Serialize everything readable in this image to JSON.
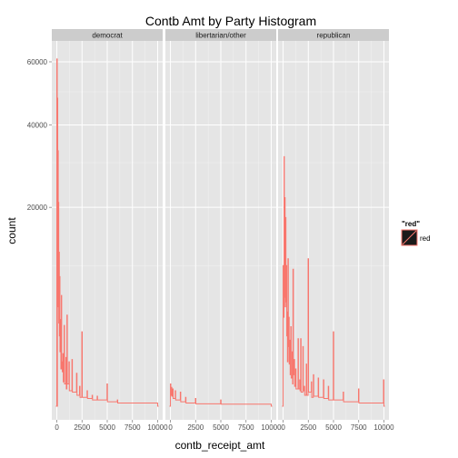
{
  "chart_data": {
    "type": "histogram",
    "title": "Contb Amt by Party Histogram",
    "xlabel": "contb_receipt_amt",
    "ylabel": "count",
    "y_scale": "sqrt",
    "xlim": [
      -500,
      10500
    ],
    "ylim": [
      0,
      65000
    ],
    "x_ticks": [
      0,
      2500,
      5000,
      7500,
      10000
    ],
    "x_tick_labels": [
      "0",
      "2500",
      "5000",
      "7500",
      "10000"
    ],
    "y_ticks": [
      20000,
      40000,
      60000
    ],
    "y_tick_labels": [
      "20000",
      "40000",
      "60000"
    ],
    "grid": true,
    "line_color": "#f8766d",
    "legend": {
      "title": "\"red\"",
      "label": "red",
      "position": "right"
    },
    "panels": [
      {
        "name": "democrat",
        "points": [
          [
            -100,
            0
          ],
          [
            0,
            0
          ],
          [
            0,
            61000
          ],
          [
            40,
            61000
          ],
          [
            40,
            0
          ],
          [
            60,
            0
          ],
          [
            60,
            48000
          ],
          [
            90,
            48000
          ],
          [
            90,
            5000
          ],
          [
            110,
            5000
          ],
          [
            110,
            33000
          ],
          [
            140,
            33000
          ],
          [
            140,
            6000
          ],
          [
            160,
            6000
          ],
          [
            160,
            21000
          ],
          [
            190,
            21000
          ],
          [
            190,
            3500
          ],
          [
            220,
            3500
          ],
          [
            220,
            12000
          ],
          [
            250,
            12000
          ],
          [
            250,
            2500
          ],
          [
            280,
            2500
          ],
          [
            280,
            8500
          ],
          [
            310,
            8500
          ],
          [
            310,
            1500
          ],
          [
            360,
            1500
          ],
          [
            360,
            3800
          ],
          [
            400,
            3800
          ],
          [
            400,
            700
          ],
          [
            450,
            700
          ],
          [
            450,
            6200
          ],
          [
            480,
            6200
          ],
          [
            480,
            1000
          ],
          [
            540,
            1000
          ],
          [
            540,
            600
          ],
          [
            600,
            600
          ],
          [
            600,
            1400
          ],
          [
            640,
            1400
          ],
          [
            640,
            300
          ],
          [
            720,
            300
          ],
          [
            720,
            3300
          ],
          [
            760,
            3300
          ],
          [
            760,
            250
          ],
          [
            900,
            250
          ],
          [
            900,
            1200
          ],
          [
            940,
            1200
          ],
          [
            940,
            150
          ],
          [
            1000,
            150
          ],
          [
            1000,
            4200
          ],
          [
            1040,
            4200
          ],
          [
            1040,
            250
          ],
          [
            1200,
            250
          ],
          [
            1200,
            1000
          ],
          [
            1240,
            1000
          ],
          [
            1240,
            120
          ],
          [
            1500,
            120
          ],
          [
            1500,
            1100
          ],
          [
            1540,
            1100
          ],
          [
            1540,
            100
          ],
          [
            1950,
            100
          ],
          [
            1950,
            550
          ],
          [
            2000,
            550
          ],
          [
            2000,
            60
          ],
          [
            2250,
            60
          ],
          [
            2250,
            200
          ],
          [
            2300,
            200
          ],
          [
            2300,
            40
          ],
          [
            2480,
            40
          ],
          [
            2480,
            2800
          ],
          [
            2520,
            2800
          ],
          [
            2520,
            40
          ],
          [
            3000,
            40
          ],
          [
            3000,
            120
          ],
          [
            3040,
            120
          ],
          [
            3040,
            30
          ],
          [
            3500,
            30
          ],
          [
            3500,
            60
          ],
          [
            3540,
            60
          ],
          [
            3540,
            20
          ],
          [
            4000,
            20
          ],
          [
            4000,
            50
          ],
          [
            4040,
            50
          ],
          [
            4040,
            20
          ],
          [
            4980,
            20
          ],
          [
            4980,
            250
          ],
          [
            5020,
            250
          ],
          [
            5020,
            10
          ],
          [
            6000,
            10
          ],
          [
            6000,
            20
          ],
          [
            6040,
            20
          ],
          [
            6040,
            5
          ],
          [
            10000,
            5
          ],
          [
            10000,
            0
          ],
          [
            10100,
            0
          ]
        ]
      },
      {
        "name": "libertarian/other",
        "points": [
          [
            -100,
            0
          ],
          [
            0,
            0
          ],
          [
            0,
            250
          ],
          [
            40,
            250
          ],
          [
            40,
            60
          ],
          [
            100,
            60
          ],
          [
            100,
            180
          ],
          [
            140,
            180
          ],
          [
            140,
            50
          ],
          [
            230,
            50
          ],
          [
            230,
            150
          ],
          [
            270,
            150
          ],
          [
            270,
            30
          ],
          [
            480,
            30
          ],
          [
            480,
            120
          ],
          [
            520,
            120
          ],
          [
            520,
            20
          ],
          [
            980,
            20
          ],
          [
            980,
            100
          ],
          [
            1020,
            100
          ],
          [
            1020,
            10
          ],
          [
            1500,
            10
          ],
          [
            1500,
            40
          ],
          [
            1540,
            40
          ],
          [
            1540,
            5
          ],
          [
            2480,
            5
          ],
          [
            2480,
            30
          ],
          [
            2520,
            30
          ],
          [
            2520,
            3
          ],
          [
            4980,
            3
          ],
          [
            4980,
            20
          ],
          [
            5020,
            20
          ],
          [
            5020,
            2
          ],
          [
            10000,
            2
          ],
          [
            10000,
            0
          ],
          [
            10100,
            0
          ]
        ]
      },
      {
        "name": "republican",
        "points": [
          [
            -100,
            0
          ],
          [
            0,
            0
          ],
          [
            0,
            10000
          ],
          [
            40,
            10000
          ],
          [
            40,
            4000
          ],
          [
            90,
            4000
          ],
          [
            90,
            31500
          ],
          [
            120,
            31500
          ],
          [
            120,
            6000
          ],
          [
            160,
            6000
          ],
          [
            160,
            22000
          ],
          [
            200,
            22000
          ],
          [
            200,
            5000
          ],
          [
            240,
            5000
          ],
          [
            240,
            18000
          ],
          [
            280,
            18000
          ],
          [
            280,
            5500
          ],
          [
            330,
            5500
          ],
          [
            330,
            10000
          ],
          [
            360,
            10000
          ],
          [
            360,
            2500
          ],
          [
            400,
            2500
          ],
          [
            400,
            4500
          ],
          [
            430,
            4500
          ],
          [
            430,
            1000
          ],
          [
            480,
            1000
          ],
          [
            480,
            11000
          ],
          [
            520,
            11000
          ],
          [
            520,
            1800
          ],
          [
            560,
            1800
          ],
          [
            560,
            4000
          ],
          [
            600,
            4000
          ],
          [
            600,
            900
          ],
          [
            660,
            900
          ],
          [
            660,
            2200
          ],
          [
            700,
            2200
          ],
          [
            700,
            500
          ],
          [
            760,
            500
          ],
          [
            760,
            3200
          ],
          [
            800,
            3200
          ],
          [
            800,
            400
          ],
          [
            900,
            400
          ],
          [
            900,
            1500
          ],
          [
            940,
            1500
          ],
          [
            940,
            250
          ],
          [
            980,
            250
          ],
          [
            980,
            9500
          ],
          [
            1020,
            9500
          ],
          [
            1020,
            500
          ],
          [
            1100,
            500
          ],
          [
            1100,
            1100
          ],
          [
            1140,
            1100
          ],
          [
            1140,
            200
          ],
          [
            1240,
            200
          ],
          [
            1240,
            700
          ],
          [
            1280,
            700
          ],
          [
            1280,
            150
          ],
          [
            1480,
            150
          ],
          [
            1480,
            2300
          ],
          [
            1520,
            2300
          ],
          [
            1520,
            150
          ],
          [
            1640,
            150
          ],
          [
            1640,
            350
          ],
          [
            1680,
            350
          ],
          [
            1680,
            120
          ],
          [
            1740,
            120
          ],
          [
            1740,
            2300
          ],
          [
            1780,
            2300
          ],
          [
            1780,
            100
          ],
          [
            1960,
            100
          ],
          [
            1960,
            1800
          ],
          [
            2000,
            1800
          ],
          [
            2000,
            120
          ],
          [
            2100,
            120
          ],
          [
            2100,
            200
          ],
          [
            2140,
            200
          ],
          [
            2140,
            60
          ],
          [
            2300,
            60
          ],
          [
            2300,
            900
          ],
          [
            2340,
            900
          ],
          [
            2340,
            60
          ],
          [
            2480,
            60
          ],
          [
            2480,
            11000
          ],
          [
            2520,
            11000
          ],
          [
            2520,
            100
          ],
          [
            2800,
            100
          ],
          [
            2800,
            300
          ],
          [
            2840,
            300
          ],
          [
            2840,
            40
          ],
          [
            3000,
            40
          ],
          [
            3000,
            500
          ],
          [
            3040,
            500
          ],
          [
            3040,
            50
          ],
          [
            3480,
            50
          ],
          [
            3480,
            400
          ],
          [
            3520,
            400
          ],
          [
            3520,
            40
          ],
          [
            4000,
            40
          ],
          [
            4000,
            350
          ],
          [
            4040,
            350
          ],
          [
            4040,
            30
          ],
          [
            4480,
            30
          ],
          [
            4480,
            200
          ],
          [
            4520,
            200
          ],
          [
            4520,
            20
          ],
          [
            4980,
            20
          ],
          [
            4980,
            2800
          ],
          [
            5020,
            2800
          ],
          [
            5020,
            20
          ],
          [
            5960,
            20
          ],
          [
            5960,
            100
          ],
          [
            6000,
            100
          ],
          [
            6000,
            10
          ],
          [
            7480,
            10
          ],
          [
            7480,
            150
          ],
          [
            7520,
            150
          ],
          [
            7520,
            5
          ],
          [
            9960,
            5
          ],
          [
            9960,
            350
          ],
          [
            10000,
            350
          ],
          [
            10000,
            0
          ],
          [
            10100,
            0
          ]
        ]
      }
    ]
  }
}
